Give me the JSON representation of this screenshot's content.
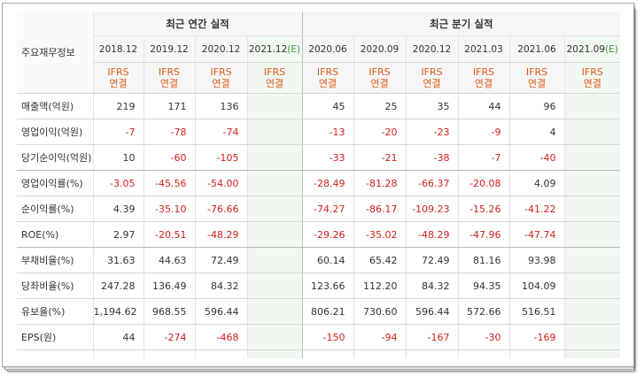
{
  "groups": {
    "annual": "최근 연간 실적",
    "quarterly": "최근 분기 실적"
  },
  "corner_label": "주요재무정보",
  "columns": [
    {
      "period": "2018.12",
      "est": "",
      "ifrs": "IFRS",
      "basis": "연결"
    },
    {
      "period": "2019.12",
      "est": "",
      "ifrs": "IFRS",
      "basis": "연결"
    },
    {
      "period": "2020.12",
      "est": "",
      "ifrs": "IFRS",
      "basis": "연결"
    },
    {
      "period": "2021.12",
      "est": "(E)",
      "ifrs": "IFRS",
      "basis": "연결"
    },
    {
      "period": "2020.06",
      "est": "",
      "ifrs": "IFRS",
      "basis": "연결"
    },
    {
      "period": "2020.09",
      "est": "",
      "ifrs": "IFRS",
      "basis": "연결"
    },
    {
      "period": "2020.12",
      "est": "",
      "ifrs": "IFRS",
      "basis": "연결"
    },
    {
      "period": "2021.03",
      "est": "",
      "ifrs": "IFRS",
      "basis": "연결"
    },
    {
      "period": "2021.06",
      "est": "",
      "ifrs": "IFRS",
      "basis": "연결"
    },
    {
      "period": "2021.09",
      "est": "(E)",
      "ifrs": "IFRS",
      "basis": "연결"
    }
  ],
  "rows": [
    {
      "label": "매출액(억원)",
      "values": [
        "219",
        "171",
        "136",
        "",
        "45",
        "25",
        "35",
        "44",
        "96",
        ""
      ]
    },
    {
      "label": "영업이익(억원)",
      "values": [
        "-7",
        "-78",
        "-74",
        "",
        "-13",
        "-20",
        "-23",
        "-9",
        "4",
        ""
      ]
    },
    {
      "label": "당기순이익(억원)",
      "values": [
        "10",
        "-60",
        "-105",
        "",
        "-33",
        "-21",
        "-38",
        "-7",
        "-40",
        ""
      ]
    },
    {
      "label": "영업이익률(%)",
      "values": [
        "-3.05",
        "-45.56",
        "-54.00",
        "",
        "-28.49",
        "-81.28",
        "-66.37",
        "-20.08",
        "4.09",
        ""
      ]
    },
    {
      "label": "순이익률(%)",
      "values": [
        "4.39",
        "-35.10",
        "-76.66",
        "",
        "-74.27",
        "-86.17",
        "-109.23",
        "-15.26",
        "-41.22",
        ""
      ]
    },
    {
      "label": "ROE(%)",
      "values": [
        "2.97",
        "-20.51",
        "-48.29",
        "",
        "-29.26",
        "-35.02",
        "-48.29",
        "-47.96",
        "-47.74",
        ""
      ]
    },
    {
      "label": "부채비율(%)",
      "values": [
        "31.63",
        "44.63",
        "72.49",
        "",
        "60.14",
        "65.42",
        "72.49",
        "81.16",
        "93.98",
        ""
      ]
    },
    {
      "label": "당좌비율(%)",
      "values": [
        "247.28",
        "136.49",
        "84.32",
        "",
        "123.66",
        "112.20",
        "84.32",
        "94.35",
        "104.09",
        ""
      ]
    },
    {
      "label": "유보율(%)",
      "values": [
        "1,194.62",
        "968.55",
        "596.44",
        "",
        "806.21",
        "730.60",
        "596.44",
        "572.66",
        "516.51",
        ""
      ]
    },
    {
      "label": "EPS(원)",
      "values": [
        "44",
        "-274",
        "-468",
        "",
        "-150",
        "-94",
        "-167",
        "-30",
        "-169",
        ""
      ]
    },
    {
      "label": "",
      "values": [
        "",
        "",
        "",
        "",
        "",
        "",
        "",
        "",
        "",
        ""
      ]
    }
  ]
}
